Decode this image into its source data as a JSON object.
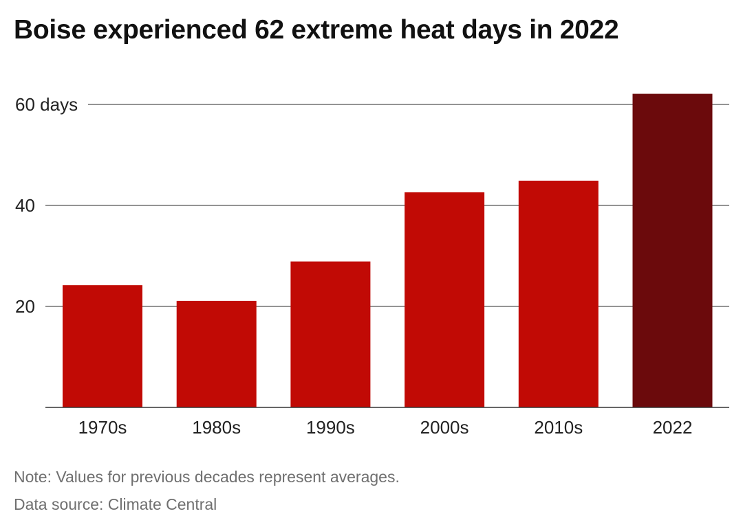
{
  "title": "Boise experienced 62 extreme heat days in 2022",
  "note": "Note: Values for previous decades represent averages.",
  "source": "Data source: Climate Central",
  "chart_data": {
    "type": "bar",
    "categories": [
      "1970s",
      "1980s",
      "1990s",
      "2000s",
      "2010s",
      "2022"
    ],
    "values": [
      24.2,
      21.1,
      28.9,
      42.6,
      44.9,
      62.1
    ],
    "yticks": [
      20,
      40,
      60
    ],
    "ytick_labels": [
      "20",
      "40",
      "60 days"
    ],
    "ylim": [
      0,
      62.1
    ],
    "grid": true,
    "colors": {
      "default_bar": "#c10a05",
      "highlight_bar": "#6b0a0c",
      "grid": "#555555",
      "axis": "#333333"
    },
    "highlight_index": 5
  }
}
